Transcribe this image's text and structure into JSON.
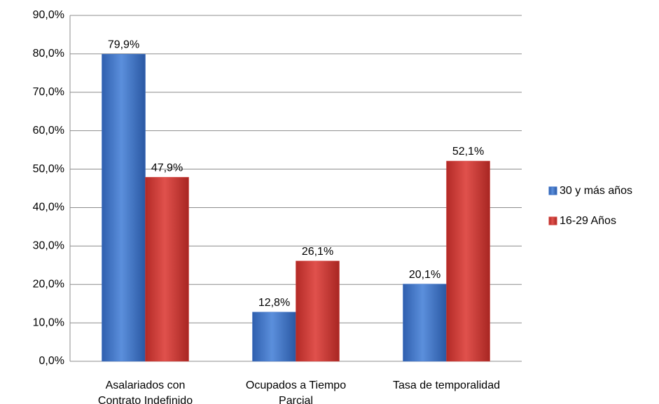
{
  "chart_data": {
    "type": "bar",
    "categories": [
      "Asalariados con Contrato Indefinido",
      "Ocupados a Tiempo Parcial",
      "Tasa de temporalidad"
    ],
    "series": [
      {
        "name": "30 y más años",
        "color": "#3a6fc4",
        "values": [
          79.9,
          12.8,
          20.1
        ],
        "value_labels": [
          "79,9%",
          "12,8%",
          "20,1%"
        ]
      },
      {
        "name": "16-29 Años",
        "color": "#d13f3a",
        "values": [
          47.9,
          26.1,
          52.1
        ],
        "value_labels": [
          "47,9%",
          "26,1%",
          "52,1%"
        ]
      }
    ],
    "ylim": [
      0,
      90
    ],
    "yticks": [
      {
        "value": 0,
        "label": "0,0%"
      },
      {
        "value": 10,
        "label": "10,0%"
      },
      {
        "value": 20,
        "label": "20,0%"
      },
      {
        "value": 30,
        "label": "30,0%"
      },
      {
        "value": 40,
        "label": "40,0%"
      },
      {
        "value": 50,
        "label": "50,0%"
      },
      {
        "value": 60,
        "label": "60,0%"
      },
      {
        "value": 70,
        "label": "70,0%"
      },
      {
        "value": 80,
        "label": "80,0%"
      },
      {
        "value": 90,
        "label": "90,0%"
      }
    ],
    "grid": true,
    "legend": "right"
  }
}
